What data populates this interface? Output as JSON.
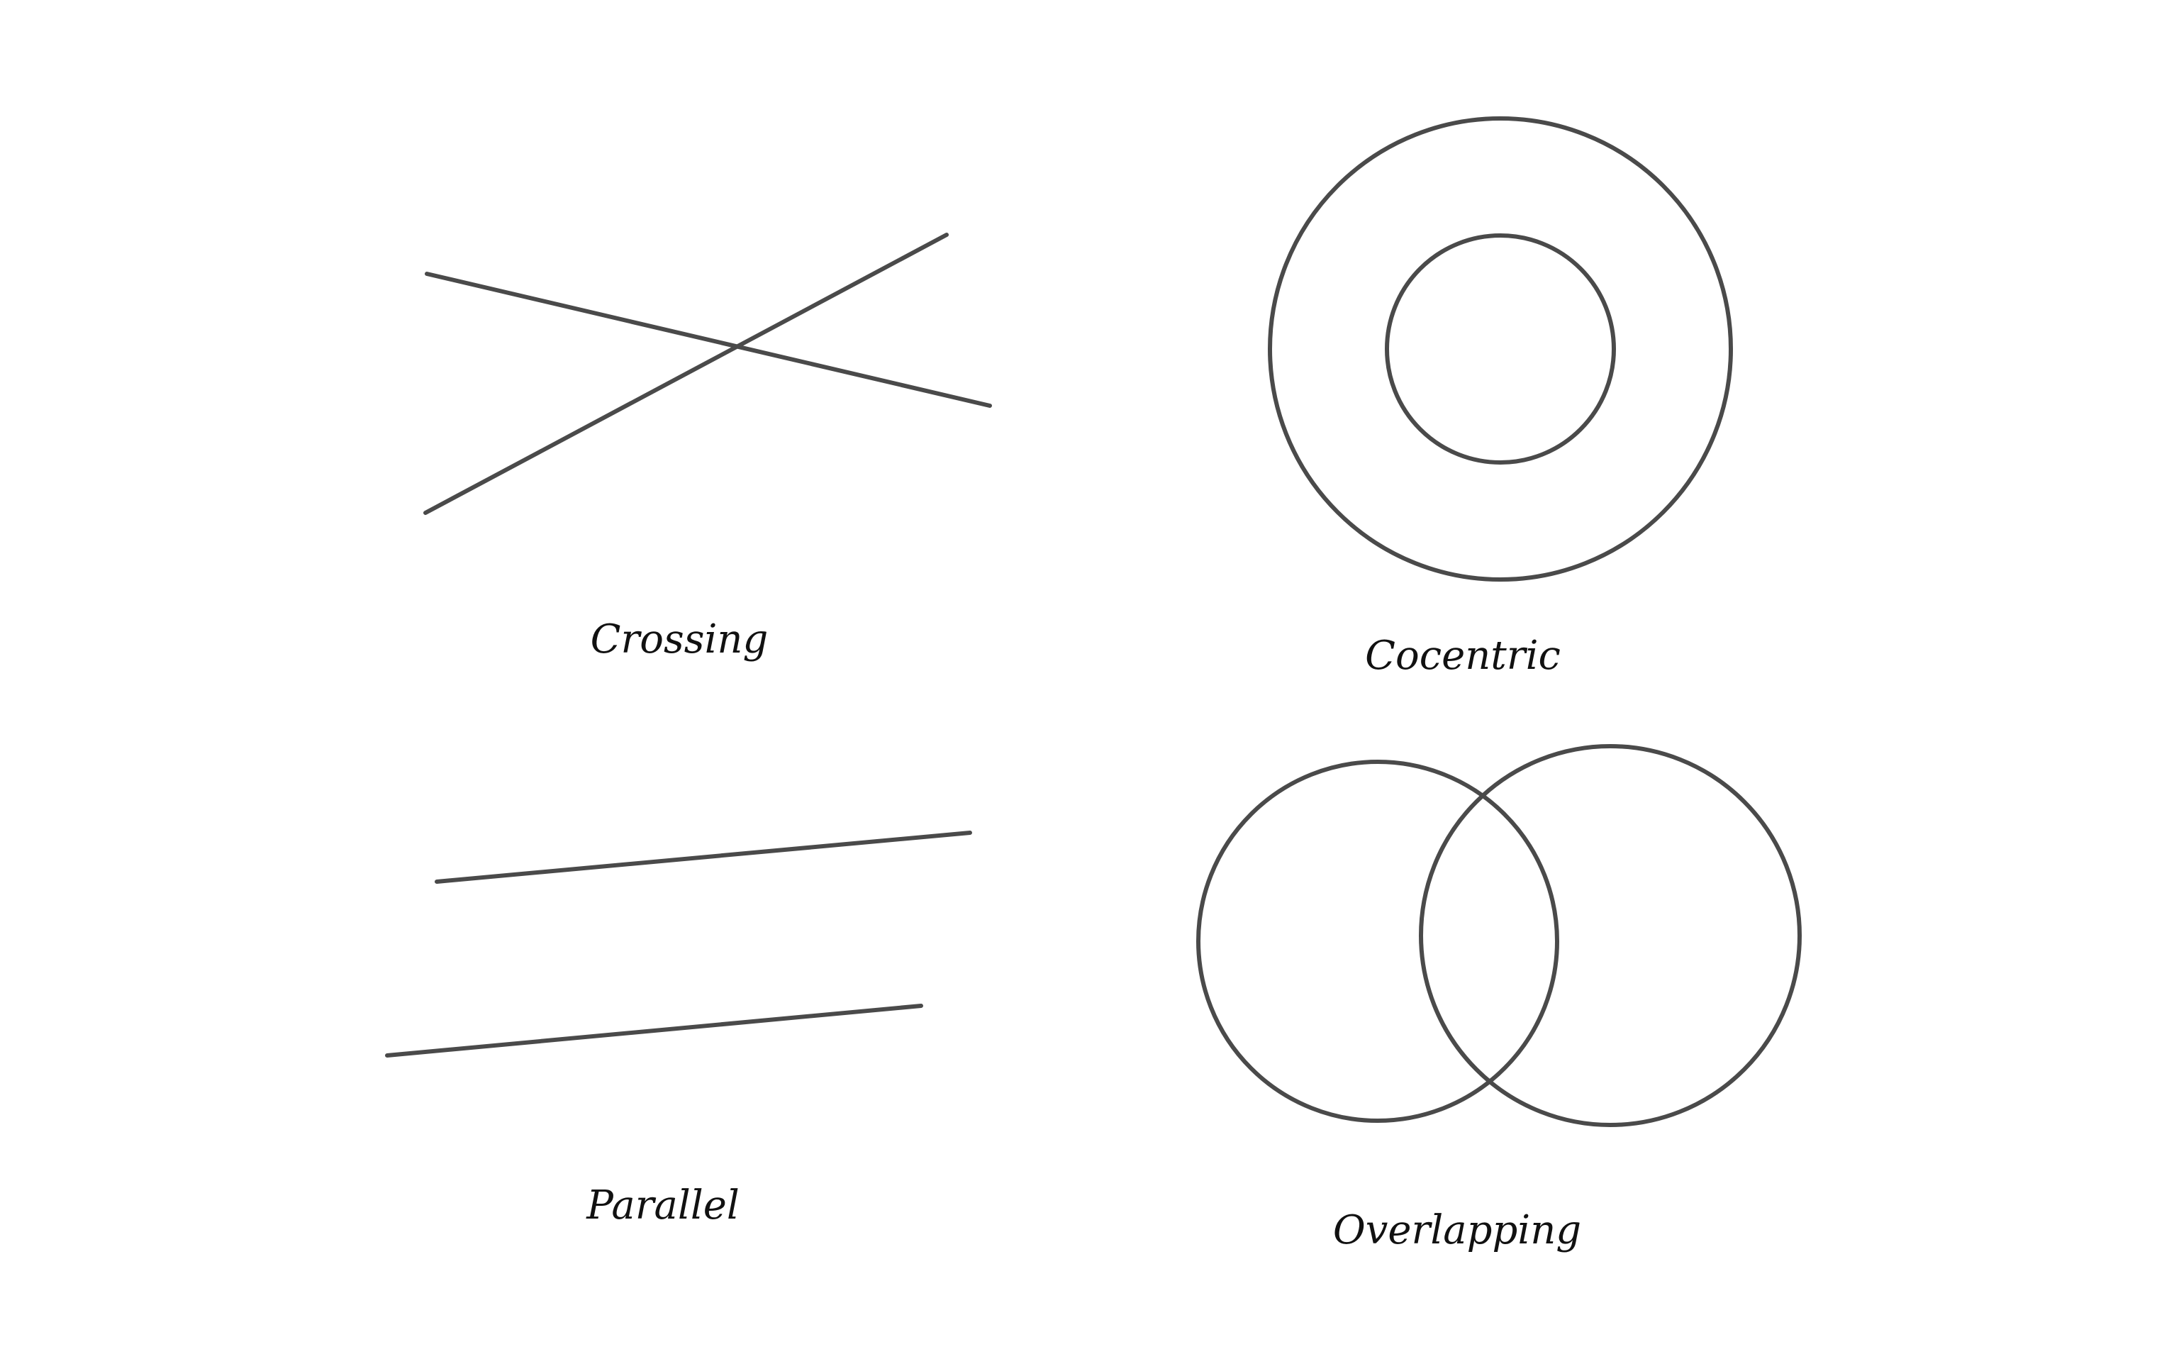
{
  "colors": {
    "stroke": "#4a4a4a",
    "text": "#111111",
    "background": "#ffffff"
  },
  "panels": [
    {
      "id": "crossing",
      "caption": "Crossing"
    },
    {
      "id": "cocentric",
      "caption": "Cocentric"
    },
    {
      "id": "parallel",
      "caption": "Parallel"
    },
    {
      "id": "overlapping",
      "caption": "Overlapping"
    }
  ]
}
